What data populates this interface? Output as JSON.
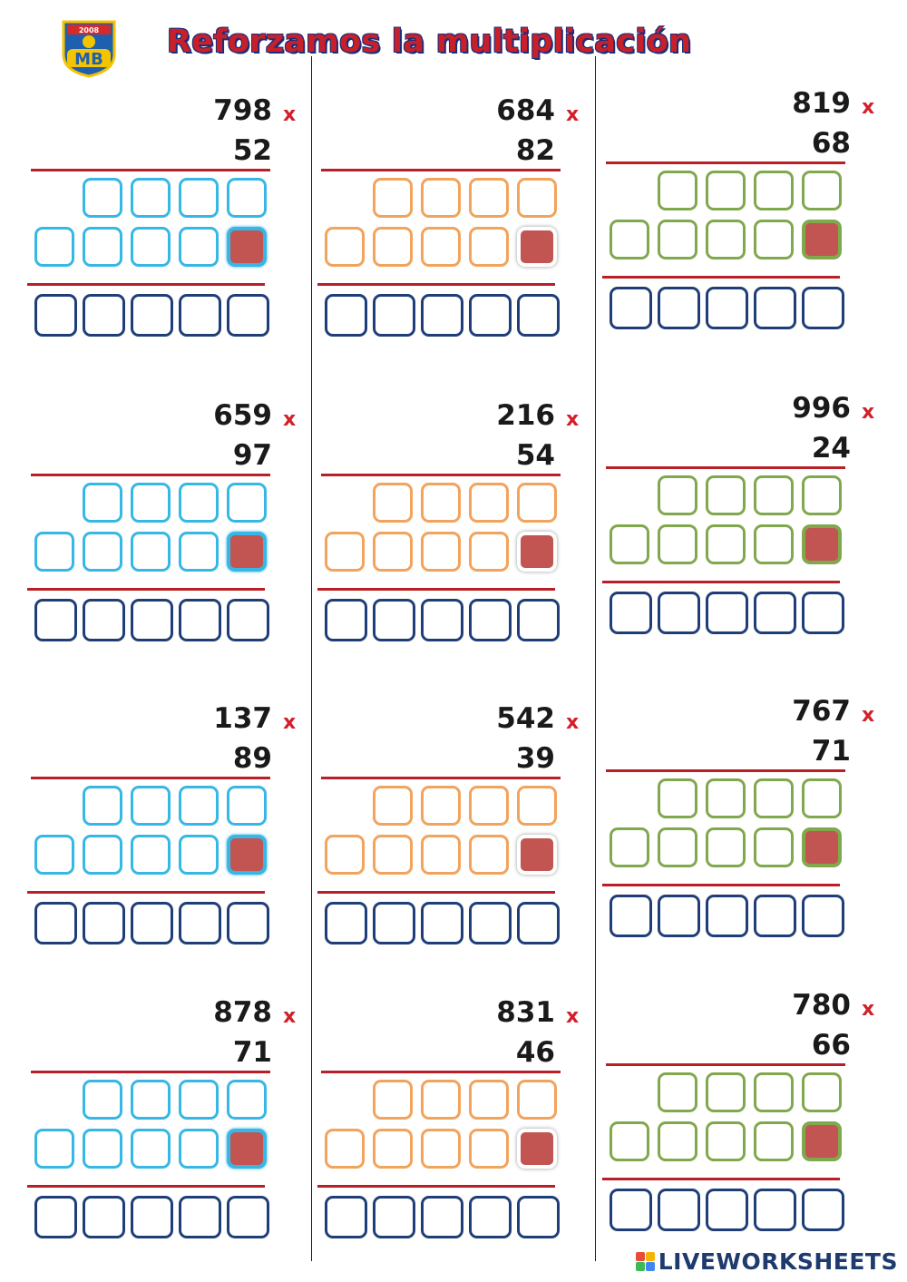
{
  "header": {
    "title": "Reforzamos la multiplicación",
    "logo_text": "MB",
    "logo_year": "2008"
  },
  "operator_symbol": "x",
  "problems": [
    {
      "multiplicand": "798",
      "multiplier": "52",
      "color": "blue"
    },
    {
      "multiplicand": "684",
      "multiplier": "82",
      "color": "orange"
    },
    {
      "multiplicand": "819",
      "multiplier": "68",
      "color": "green"
    },
    {
      "multiplicand": "659",
      "multiplier": "97",
      "color": "blue"
    },
    {
      "multiplicand": "216",
      "multiplier": "54",
      "color": "orange"
    },
    {
      "multiplicand": "996",
      "multiplier": "24",
      "color": "green"
    },
    {
      "multiplicand": "137",
      "multiplier": "89",
      "color": "blue"
    },
    {
      "multiplicand": "542",
      "multiplier": "39",
      "color": "orange"
    },
    {
      "multiplicand": "767",
      "multiplier": "71",
      "color": "green"
    },
    {
      "multiplicand": "878",
      "multiplier": "71",
      "color": "blue"
    },
    {
      "multiplicand": "831",
      "multiplier": "46",
      "color": "orange"
    },
    {
      "multiplicand": "780",
      "multiplier": "66",
      "color": "green"
    }
  ],
  "footer": {
    "brand": "LIVEWORKSHEETS",
    "brand_colors": [
      "#e84b3c",
      "#f4b400",
      "#3cba54",
      "#4285f4"
    ]
  },
  "colors": {
    "blue": "#37b7e6",
    "orange": "#f2a35c",
    "green": "#80a84d",
    "answer_border": "#1f3e78",
    "rule": "#b81f27",
    "filled_cell": "#c25552"
  }
}
